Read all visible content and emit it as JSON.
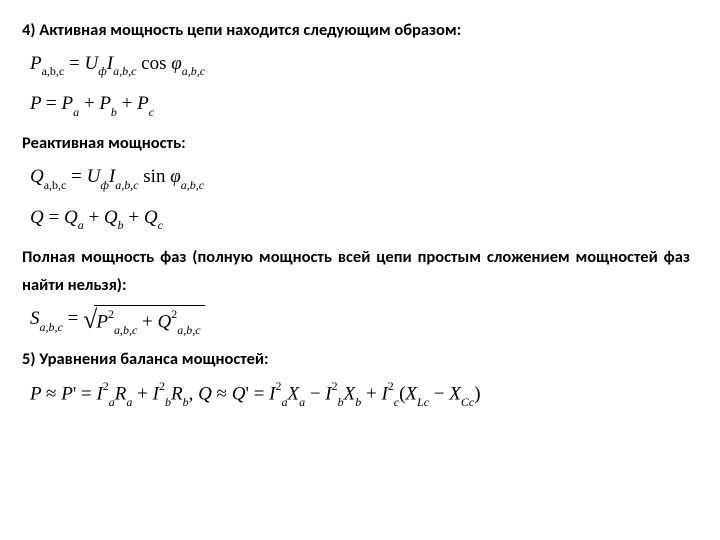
{
  "section4": {
    "title": "4) Активная мощность цепи находится следующим образом:",
    "formula1_html": "<span>P</span><span class='sub rm'>a,b,c</span> <span class='rm'>=</span> <span>U</span><span class='sub'>ф</span><span>I</span><span class='sub'>a,b,c</span> <span class='rm'>cos</span> <span>φ</span><span class='sub'>a,b,c</span>",
    "formula2_html": "<span>P</span> <span class='rm'>=</span> <span>P</span><span class='sub'>a</span> <span class='rm'>+</span> <span>P</span><span class='sub'>b</span> <span class='rm'>+</span> <span>P</span><span class='sub'>c</span>"
  },
  "reactive": {
    "title": "Реактивная мощность:",
    "formula1_html": "<span>Q</span><span class='sub rm'>a,b,c</span> <span class='rm'>=</span> <span>U</span><span class='sub'>ф</span><span>I</span><span class='sub'>a,b,c</span> <span class='rm'>sin</span> <span>φ</span><span class='sub'>a,b,c</span>",
    "formula2_html": "<span>Q</span> <span class='rm'>=</span> <span>Q</span><span class='sub'>a</span> <span class='rm'>+</span> <span>Q</span><span class='sub'>b</span> <span class='rm'>+</span> <span>Q</span><span class='sub'>c</span>"
  },
  "full": {
    "title": "Полная мощность фаз (полную мощность всей цепи простым сложением мощностей фаз найти нельзя):",
    "formula_prefix_html": "<span>S</span><span class='sub'>a,b,c</span> <span class='rm'>= </span>",
    "formula_sqrt_html": "<span>P</span><span class='sup rm'>2</span><span class='sub'>a,b,c</span> <span class='rm'>+</span> <span>Q</span><span class='sup rm'>2</span><span class='sub'>a,b,c</span>"
  },
  "section5": {
    "title": "5) Уравнения баланса мощностей:",
    "formula_html": "<span>P</span> <span class='rm'>≈</span> <span>P</span><span class='rm'>'</span> <span class='rm'>=</span> <span>I</span><span class='sup rm'>2</span><span class='sub'>a</span><span>R</span><span class='sub'>a</span> <span class='rm'>+</span> <span>I</span><span class='sup rm'>2</span><span class='sub'>b</span><span>R</span><span class='sub'>b</span><span class='rm'>, </span><span>Q</span> <span class='rm'>≈</span> <span>Q</span><span class='rm'>'</span> <span class='rm'>=</span> <span>I</span><span class='sup rm'>2</span><span class='sub'>a</span><span>X</span><span class='sub'>a</span> <span class='rm'>−</span> <span>I</span><span class='sup rm'>2</span><span class='sub'>b</span><span>X</span><span class='sub'>b</span> <span class='rm'>+</span> <span>I</span><span class='sup rm'>2</span><span class='sub'>c</span><span class='rm'>(</span><span>X</span><span class='sub'>Lc</span> <span class='rm'>−</span> <span>X</span><span class='sub'>Cc</span><span class='rm'>)</span>"
  }
}
